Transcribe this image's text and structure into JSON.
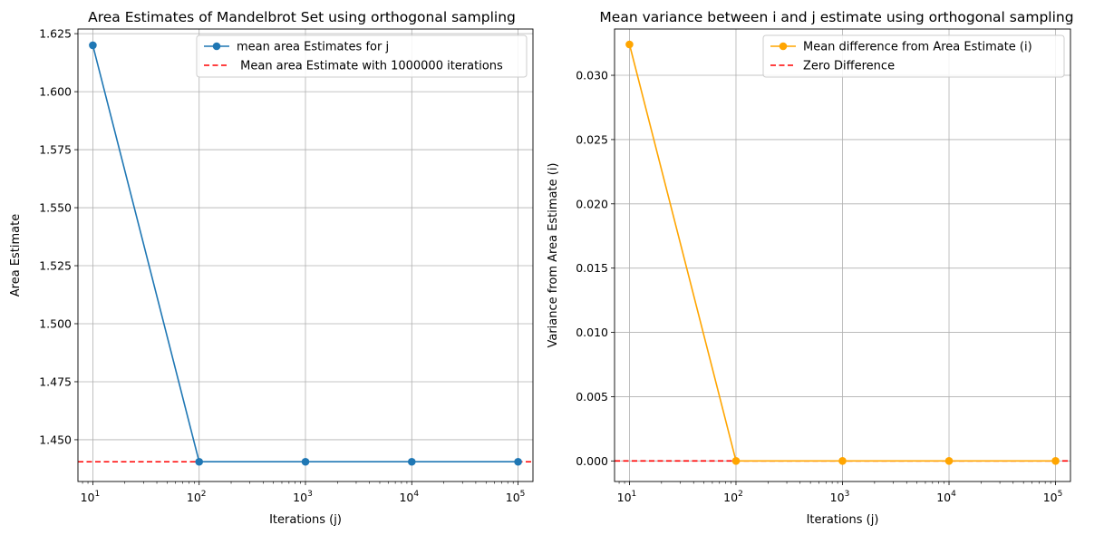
{
  "chart_data": [
    {
      "type": "line",
      "title": "Area Estimates of Mandelbrot Set using orthogonal sampling",
      "xlabel": "Iterations (j)",
      "ylabel": "Area Estimate",
      "xscale": "log",
      "x": [
        10,
        100,
        1000,
        10000,
        100000
      ],
      "xticks": [
        1,
        2,
        3,
        4,
        5
      ],
      "xtick_base": "10",
      "yticks": [
        "1.450",
        "1.475",
        "1.500",
        "1.525",
        "1.550",
        "1.575",
        "1.600",
        "1.625"
      ],
      "ylim": [
        1.432,
        1.627
      ],
      "grid": true,
      "legend_position": "top-right",
      "series": [
        {
          "name": "mean area Estimates for j",
          "values": [
            1.62,
            1.4405,
            1.4405,
            1.4405,
            1.4405
          ],
          "color": "#1f77b4",
          "marker": "circle"
        }
      ],
      "reference_lines": [
        {
          "name": " Mean area Estimate with 1000000 iterations",
          "y": 1.4405,
          "color": "#ff0000",
          "style": "dashed"
        }
      ]
    },
    {
      "type": "line",
      "title": "Mean variance between i and j estimate using orthogonal sampling",
      "xlabel": "Iterations (j)",
      "ylabel": "Variance from Area Estimate (i)",
      "xscale": "log",
      "x": [
        10,
        100,
        1000,
        10000,
        100000
      ],
      "xticks": [
        1,
        2,
        3,
        4,
        5
      ],
      "xtick_base": "10",
      "yticks": [
        "0.000",
        "0.005",
        "0.010",
        "0.015",
        "0.020",
        "0.025",
        "0.030"
      ],
      "ylim": [
        -0.0016,
        0.0336
      ],
      "grid": true,
      "legend_position": "top-right",
      "series": [
        {
          "name": "Mean difference from Area Estimate (i)",
          "values": [
            0.0324,
            0.0,
            0.0,
            0.0,
            0.0
          ],
          "color": "#ffa500",
          "marker": "circle"
        }
      ],
      "reference_lines": [
        {
          "name": "Zero Difference",
          "y": 0.0,
          "color": "#ff0000",
          "style": "dashed"
        }
      ]
    }
  ]
}
